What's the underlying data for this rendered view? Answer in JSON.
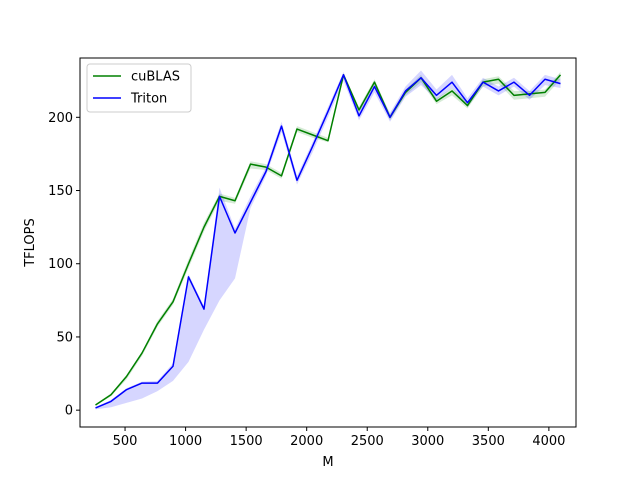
{
  "chart_data": {
    "type": "line",
    "title": "",
    "xlabel": "M",
    "ylabel": "TFLOPS",
    "xlim": [
      128,
      4224
    ],
    "ylim": [
      -11.5,
      240.5
    ],
    "xticks": [
      500,
      1000,
      1500,
      2000,
      2500,
      3000,
      3500,
      4000
    ],
    "yticks": [
      0,
      50,
      100,
      150,
      200
    ],
    "grid": false,
    "legend_position": "top-left",
    "x": [
      256,
      384,
      512,
      640,
      768,
      896,
      1024,
      1152,
      1280,
      1408,
      1536,
      1664,
      1792,
      1920,
      2048,
      2176,
      2304,
      2432,
      2560,
      2688,
      2816,
      2944,
      3072,
      3200,
      3328,
      3456,
      3584,
      3712,
      3840,
      3968,
      4096
    ],
    "series": [
      {
        "name": "cuBLAS",
        "color": "#008000",
        "values": [
          3.5,
          10.5,
          23,
          39,
          59,
          74,
          100,
          125,
          146,
          143,
          168,
          166,
          160,
          192,
          188,
          184,
          229,
          205,
          224,
          200,
          217,
          227,
          211,
          218,
          208,
          224,
          226,
          215,
          216,
          217,
          229
        ],
        "band_lower": [
          3,
          9.5,
          21,
          37,
          57,
          72,
          97,
          122,
          143,
          141,
          165,
          164,
          158,
          190,
          186,
          183,
          227,
          203,
          221,
          198,
          215,
          224,
          209,
          215,
          206,
          221,
          223,
          212,
          213,
          214,
          226
        ],
        "band_upper": [
          4,
          11.5,
          24,
          40,
          61,
          76,
          103,
          128,
          148,
          145,
          170,
          168,
          162,
          194,
          190,
          186,
          230,
          207,
          226,
          202,
          219,
          229,
          213,
          220,
          210,
          226,
          228,
          218,
          218,
          219,
          231
        ]
      },
      {
        "name": "Triton",
        "color": "#0000ff",
        "values": [
          1.5,
          6,
          14,
          18.5,
          18.5,
          30,
          91,
          69,
          146,
          121,
          142,
          163,
          194,
          157,
          180,
          204,
          229,
          201,
          221,
          200,
          218,
          227,
          215,
          224,
          210,
          224,
          218,
          224,
          215,
          226,
          223
        ],
        "band_lower": [
          0.5,
          2,
          5,
          8,
          13,
          20,
          33,
          55,
          75,
          90,
          138,
          160,
          190,
          154,
          176,
          200,
          225,
          198,
          217,
          197,
          214,
          222,
          212,
          220,
          207,
          221,
          215,
          221,
          212,
          222,
          220
        ],
        "band_upper": [
          2,
          7,
          15,
          19.5,
          20,
          32,
          93,
          71,
          152,
          124,
          146,
          166,
          197,
          160,
          183,
          207,
          231,
          204,
          224,
          203,
          221,
          232,
          219,
          229,
          213,
          227,
          221,
          227,
          218,
          229,
          226
        ]
      }
    ]
  }
}
